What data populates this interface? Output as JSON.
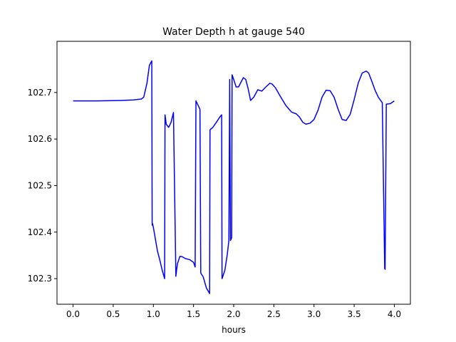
{
  "chart_data": {
    "type": "line",
    "title": "Water Depth h at gauge 540",
    "xlabel": "hours",
    "ylabel": "",
    "xlim": [
      -0.2,
      4.2
    ],
    "ylim": [
      102.245,
      102.81
    ],
    "xticks": [
      0.0,
      0.5,
      1.0,
      1.5,
      2.0,
      2.5,
      3.0,
      3.5,
      4.0
    ],
    "xtick_labels": [
      "0.0",
      "0.5",
      "1.0",
      "1.5",
      "2.0",
      "2.5",
      "3.0",
      "3.5",
      "4.0"
    ],
    "yticks": [
      102.3,
      102.4,
      102.5,
      102.6,
      102.7
    ],
    "ytick_labels": [
      "102.3",
      "102.4",
      "102.5",
      "102.6",
      "102.7"
    ],
    "grid": false,
    "series": [
      {
        "color": "#0000ff",
        "x": [
          0.0,
          0.3,
          0.6,
          0.75,
          0.85,
          0.88,
          0.92,
          0.95,
          0.97,
          0.98,
          0.985,
          0.99,
          1.0,
          1.02,
          1.05,
          1.08,
          1.11,
          1.14,
          1.145,
          1.16,
          1.19,
          1.22,
          1.25,
          1.28,
          1.29,
          1.3,
          1.33,
          1.36,
          1.4,
          1.45,
          1.5,
          1.52,
          1.53,
          1.58,
          1.59,
          1.62,
          1.66,
          1.7,
          1.705,
          1.74,
          1.78,
          1.83,
          1.85,
          1.855,
          1.89,
          1.92,
          1.94,
          1.95,
          1.96,
          1.975,
          1.98,
          2.0,
          2.03,
          2.06,
          2.09,
          2.12,
          2.15,
          2.18,
          2.21,
          2.25,
          2.3,
          2.35,
          2.4,
          2.45,
          2.48,
          2.52,
          2.58,
          2.65,
          2.72,
          2.78,
          2.82,
          2.86,
          2.9,
          2.95,
          3.0,
          3.05,
          3.1,
          3.15,
          3.2,
          3.25,
          3.3,
          3.35,
          3.4,
          3.45,
          3.5,
          3.55,
          3.6,
          3.65,
          3.68,
          3.72,
          3.76,
          3.8,
          3.85,
          3.88,
          3.885,
          3.9,
          3.905,
          3.95,
          4.0
        ],
        "values": [
          102.682,
          102.682,
          102.683,
          102.684,
          102.686,
          102.69,
          102.72,
          102.758,
          102.765,
          102.768,
          102.415,
          102.418,
          102.41,
          102.39,
          102.36,
          102.34,
          102.318,
          102.3,
          102.652,
          102.632,
          102.625,
          102.636,
          102.657,
          102.305,
          102.32,
          102.332,
          102.348,
          102.347,
          102.343,
          102.341,
          102.335,
          102.325,
          102.682,
          102.664,
          102.312,
          102.304,
          102.28,
          102.268,
          102.62,
          102.625,
          102.635,
          102.648,
          102.652,
          102.3,
          102.318,
          102.352,
          102.382,
          102.728,
          102.382,
          102.388,
          102.738,
          102.728,
          102.712,
          102.712,
          102.722,
          102.732,
          102.728,
          102.708,
          102.683,
          102.69,
          102.706,
          102.703,
          102.712,
          102.72,
          102.718,
          102.71,
          102.692,
          102.672,
          102.658,
          102.654,
          102.647,
          102.636,
          102.632,
          102.634,
          102.642,
          102.662,
          102.69,
          102.705,
          102.704,
          102.69,
          102.664,
          102.642,
          102.64,
          102.653,
          102.685,
          102.72,
          102.742,
          102.746,
          102.742,
          102.724,
          102.705,
          102.69,
          102.678,
          102.322,
          102.32,
          102.675,
          102.675,
          102.676,
          102.682
        ]
      }
    ]
  }
}
